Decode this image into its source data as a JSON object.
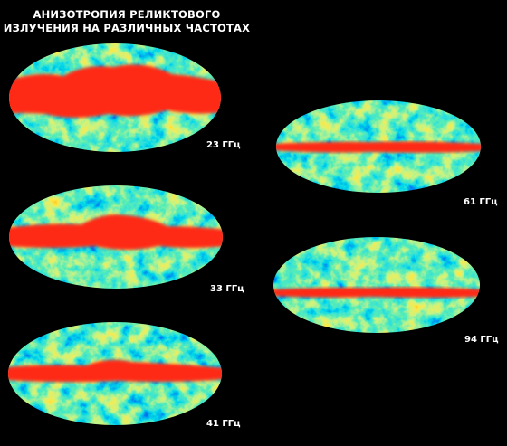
{
  "header": {
    "title_lines": [
      "АНИЗОТРОПИЯ РЕЛИКТОВОГО",
      "ИЗЛУЧЕНИЯ НА РАЗЛИЧНЫХ ЧАСТОТАХ"
    ]
  },
  "maps": [
    {
      "label": "23 ГГц"
    },
    {
      "label": "33 ГГц"
    },
    {
      "label": "41 ГГц"
    },
    {
      "label": "61 ГГц"
    },
    {
      "label": "94 ГГц"
    }
  ]
}
